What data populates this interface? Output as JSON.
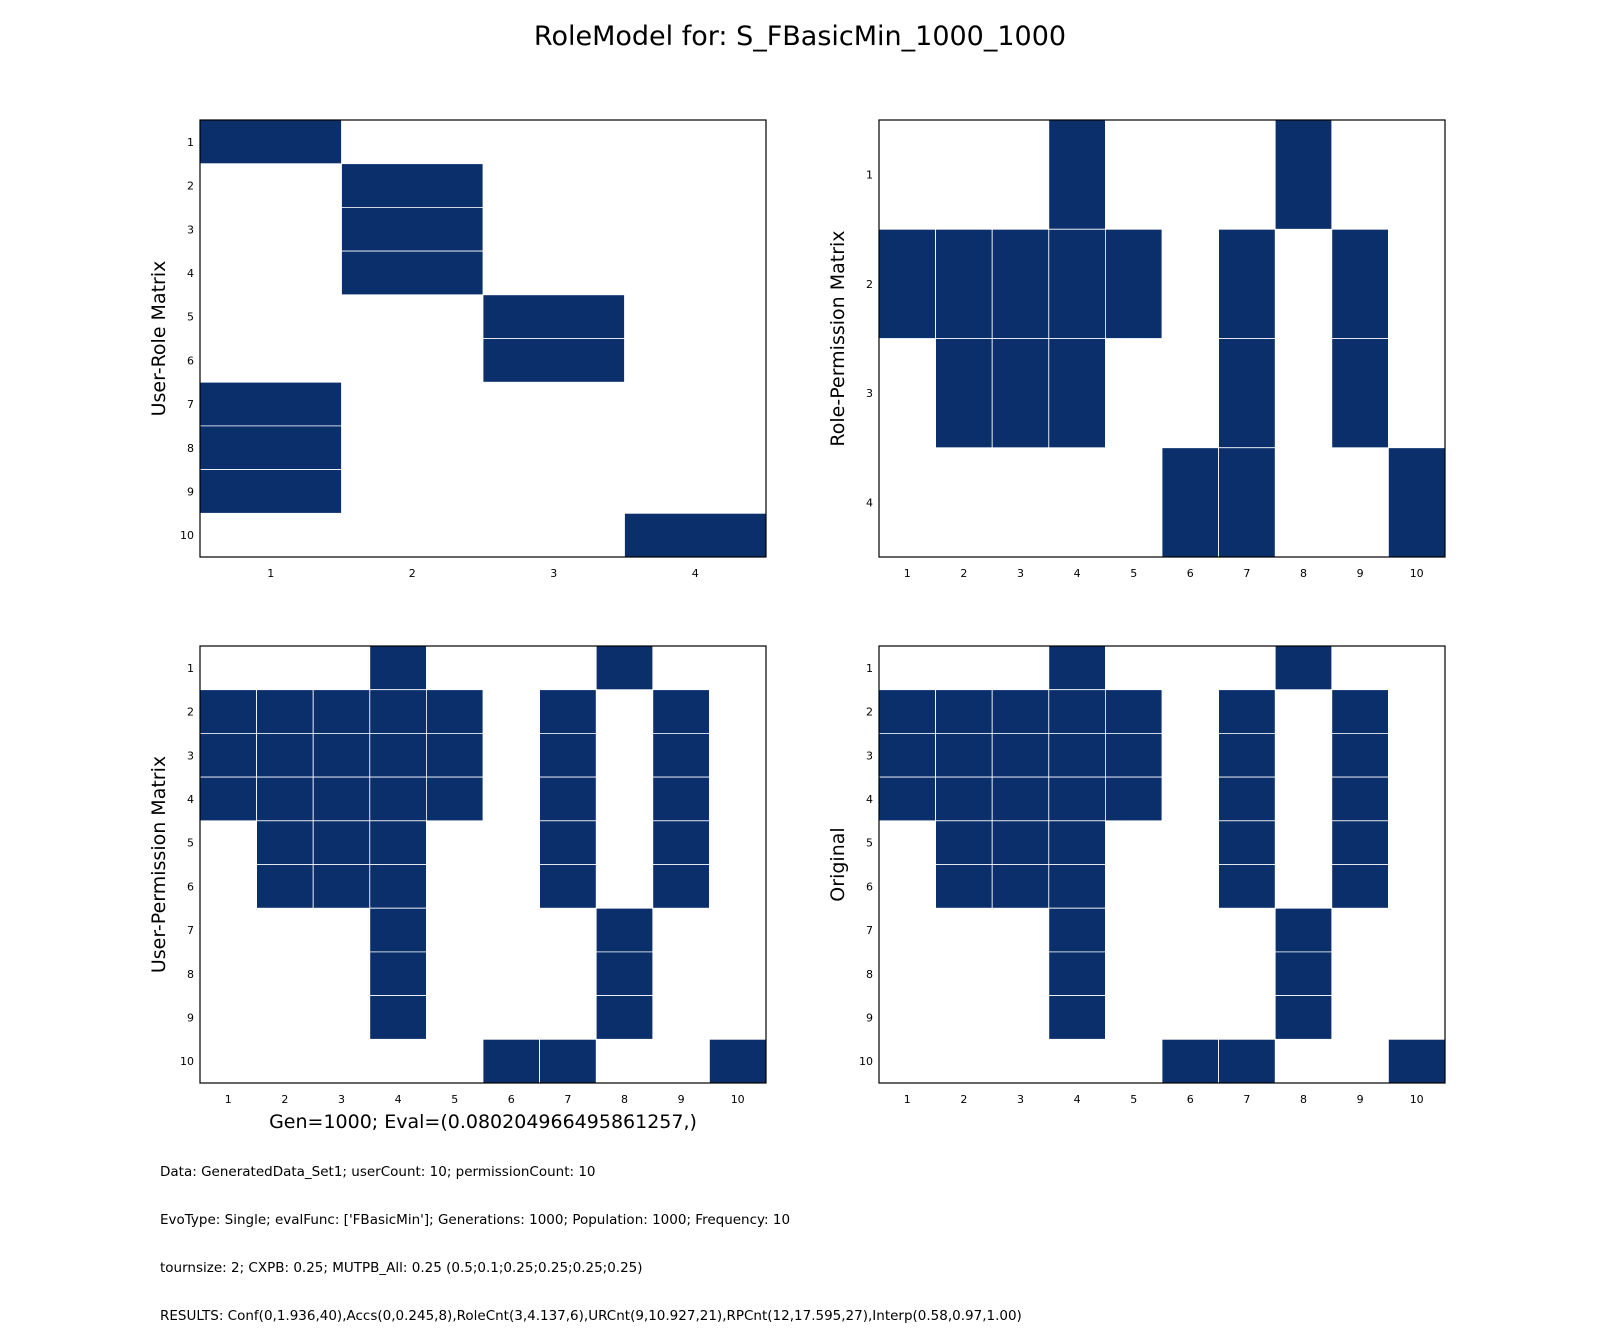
{
  "title": "RoleModel for: S_FBasicMin_1000_1000",
  "colors": {
    "filled": "#0a2f6b",
    "empty": "#ffffff",
    "grid": "#ffffff",
    "frame": "#000000"
  },
  "chart_data": [
    {
      "type": "heatmap",
      "ylabel": "User-Role Matrix",
      "xlabel": "",
      "x_ticks": [
        "1",
        "2",
        "3",
        "4"
      ],
      "y_ticks": [
        "1",
        "2",
        "3",
        "4",
        "5",
        "6",
        "7",
        "8",
        "9",
        "10"
      ],
      "matrix": [
        [
          1,
          0,
          0,
          0
        ],
        [
          0,
          1,
          0,
          0
        ],
        [
          0,
          1,
          0,
          0
        ],
        [
          0,
          1,
          0,
          0
        ],
        [
          0,
          0,
          1,
          0
        ],
        [
          0,
          0,
          1,
          0
        ],
        [
          1,
          0,
          0,
          0
        ],
        [
          1,
          0,
          0,
          0
        ],
        [
          1,
          0,
          0,
          0
        ],
        [
          0,
          0,
          0,
          1
        ]
      ]
    },
    {
      "type": "heatmap",
      "ylabel": "Role-Permission Matrix",
      "xlabel": "",
      "x_ticks": [
        "1",
        "2",
        "3",
        "4",
        "5",
        "6",
        "7",
        "8",
        "9",
        "10"
      ],
      "y_ticks": [
        "1",
        "2",
        "3",
        "4"
      ],
      "matrix": [
        [
          0,
          0,
          0,
          1,
          0,
          0,
          0,
          1,
          0,
          0
        ],
        [
          1,
          1,
          1,
          1,
          1,
          0,
          1,
          0,
          1,
          0
        ],
        [
          0,
          1,
          1,
          1,
          0,
          0,
          1,
          0,
          1,
          0
        ],
        [
          0,
          0,
          0,
          0,
          0,
          1,
          1,
          0,
          0,
          1
        ]
      ]
    },
    {
      "type": "heatmap",
      "ylabel": "User-Permission Matrix",
      "xlabel": "Gen=1000; Eval=(0.080204966495861257,)",
      "x_ticks": [
        "1",
        "2",
        "3",
        "4",
        "5",
        "6",
        "7",
        "8",
        "9",
        "10"
      ],
      "y_ticks": [
        "1",
        "2",
        "3",
        "4",
        "5",
        "6",
        "7",
        "8",
        "9",
        "10"
      ],
      "matrix": [
        [
          0,
          0,
          0,
          1,
          0,
          0,
          0,
          1,
          0,
          0
        ],
        [
          1,
          1,
          1,
          1,
          1,
          0,
          1,
          0,
          1,
          0
        ],
        [
          1,
          1,
          1,
          1,
          1,
          0,
          1,
          0,
          1,
          0
        ],
        [
          1,
          1,
          1,
          1,
          1,
          0,
          1,
          0,
          1,
          0
        ],
        [
          0,
          1,
          1,
          1,
          0,
          0,
          1,
          0,
          1,
          0
        ],
        [
          0,
          1,
          1,
          1,
          0,
          0,
          1,
          0,
          1,
          0
        ],
        [
          0,
          0,
          0,
          1,
          0,
          0,
          0,
          1,
          0,
          0
        ],
        [
          0,
          0,
          0,
          1,
          0,
          0,
          0,
          1,
          0,
          0
        ],
        [
          0,
          0,
          0,
          1,
          0,
          0,
          0,
          1,
          0,
          0
        ],
        [
          0,
          0,
          0,
          0,
          0,
          1,
          1,
          0,
          0,
          1
        ]
      ]
    },
    {
      "type": "heatmap",
      "ylabel": "Original",
      "xlabel": "",
      "x_ticks": [
        "1",
        "2",
        "3",
        "4",
        "5",
        "6",
        "7",
        "8",
        "9",
        "10"
      ],
      "y_ticks": [
        "1",
        "2",
        "3",
        "4",
        "5",
        "6",
        "7",
        "8",
        "9",
        "10"
      ],
      "matrix": [
        [
          0,
          0,
          0,
          1,
          0,
          0,
          0,
          1,
          0,
          0
        ],
        [
          1,
          1,
          1,
          1,
          1,
          0,
          1,
          0,
          1,
          0
        ],
        [
          1,
          1,
          1,
          1,
          1,
          0,
          1,
          0,
          1,
          0
        ],
        [
          1,
          1,
          1,
          1,
          1,
          0,
          1,
          0,
          1,
          0
        ],
        [
          0,
          1,
          1,
          1,
          0,
          0,
          1,
          0,
          1,
          0
        ],
        [
          0,
          1,
          1,
          1,
          0,
          0,
          1,
          0,
          1,
          0
        ],
        [
          0,
          0,
          0,
          1,
          0,
          0,
          0,
          1,
          0,
          0
        ],
        [
          0,
          0,
          0,
          1,
          0,
          0,
          0,
          1,
          0,
          0
        ],
        [
          0,
          0,
          0,
          1,
          0,
          0,
          0,
          1,
          0,
          0
        ],
        [
          0,
          0,
          0,
          0,
          0,
          1,
          1,
          0,
          0,
          1
        ]
      ]
    }
  ],
  "footer": [
    "Data: GeneratedData_Set1; userCount: 10; permissionCount: 10",
    "EvoType: Single; evalFunc: ['FBasicMin']; Generations: 1000; Population: 1000; Frequency: 10",
    "tournsize: 2; CXPB: 0.25; MUTPB_All: 0.25 (0.5;0.1;0.25;0.25;0.25;0.25)",
    "RESULTS: Conf(0,1.936,40),Accs(0,0.245,8),RoleCnt(3,4.137,6),URCnt(9,10.927,21),RPCnt(12,17.595,27),Interp(0.58,0.97,1.00)"
  ]
}
